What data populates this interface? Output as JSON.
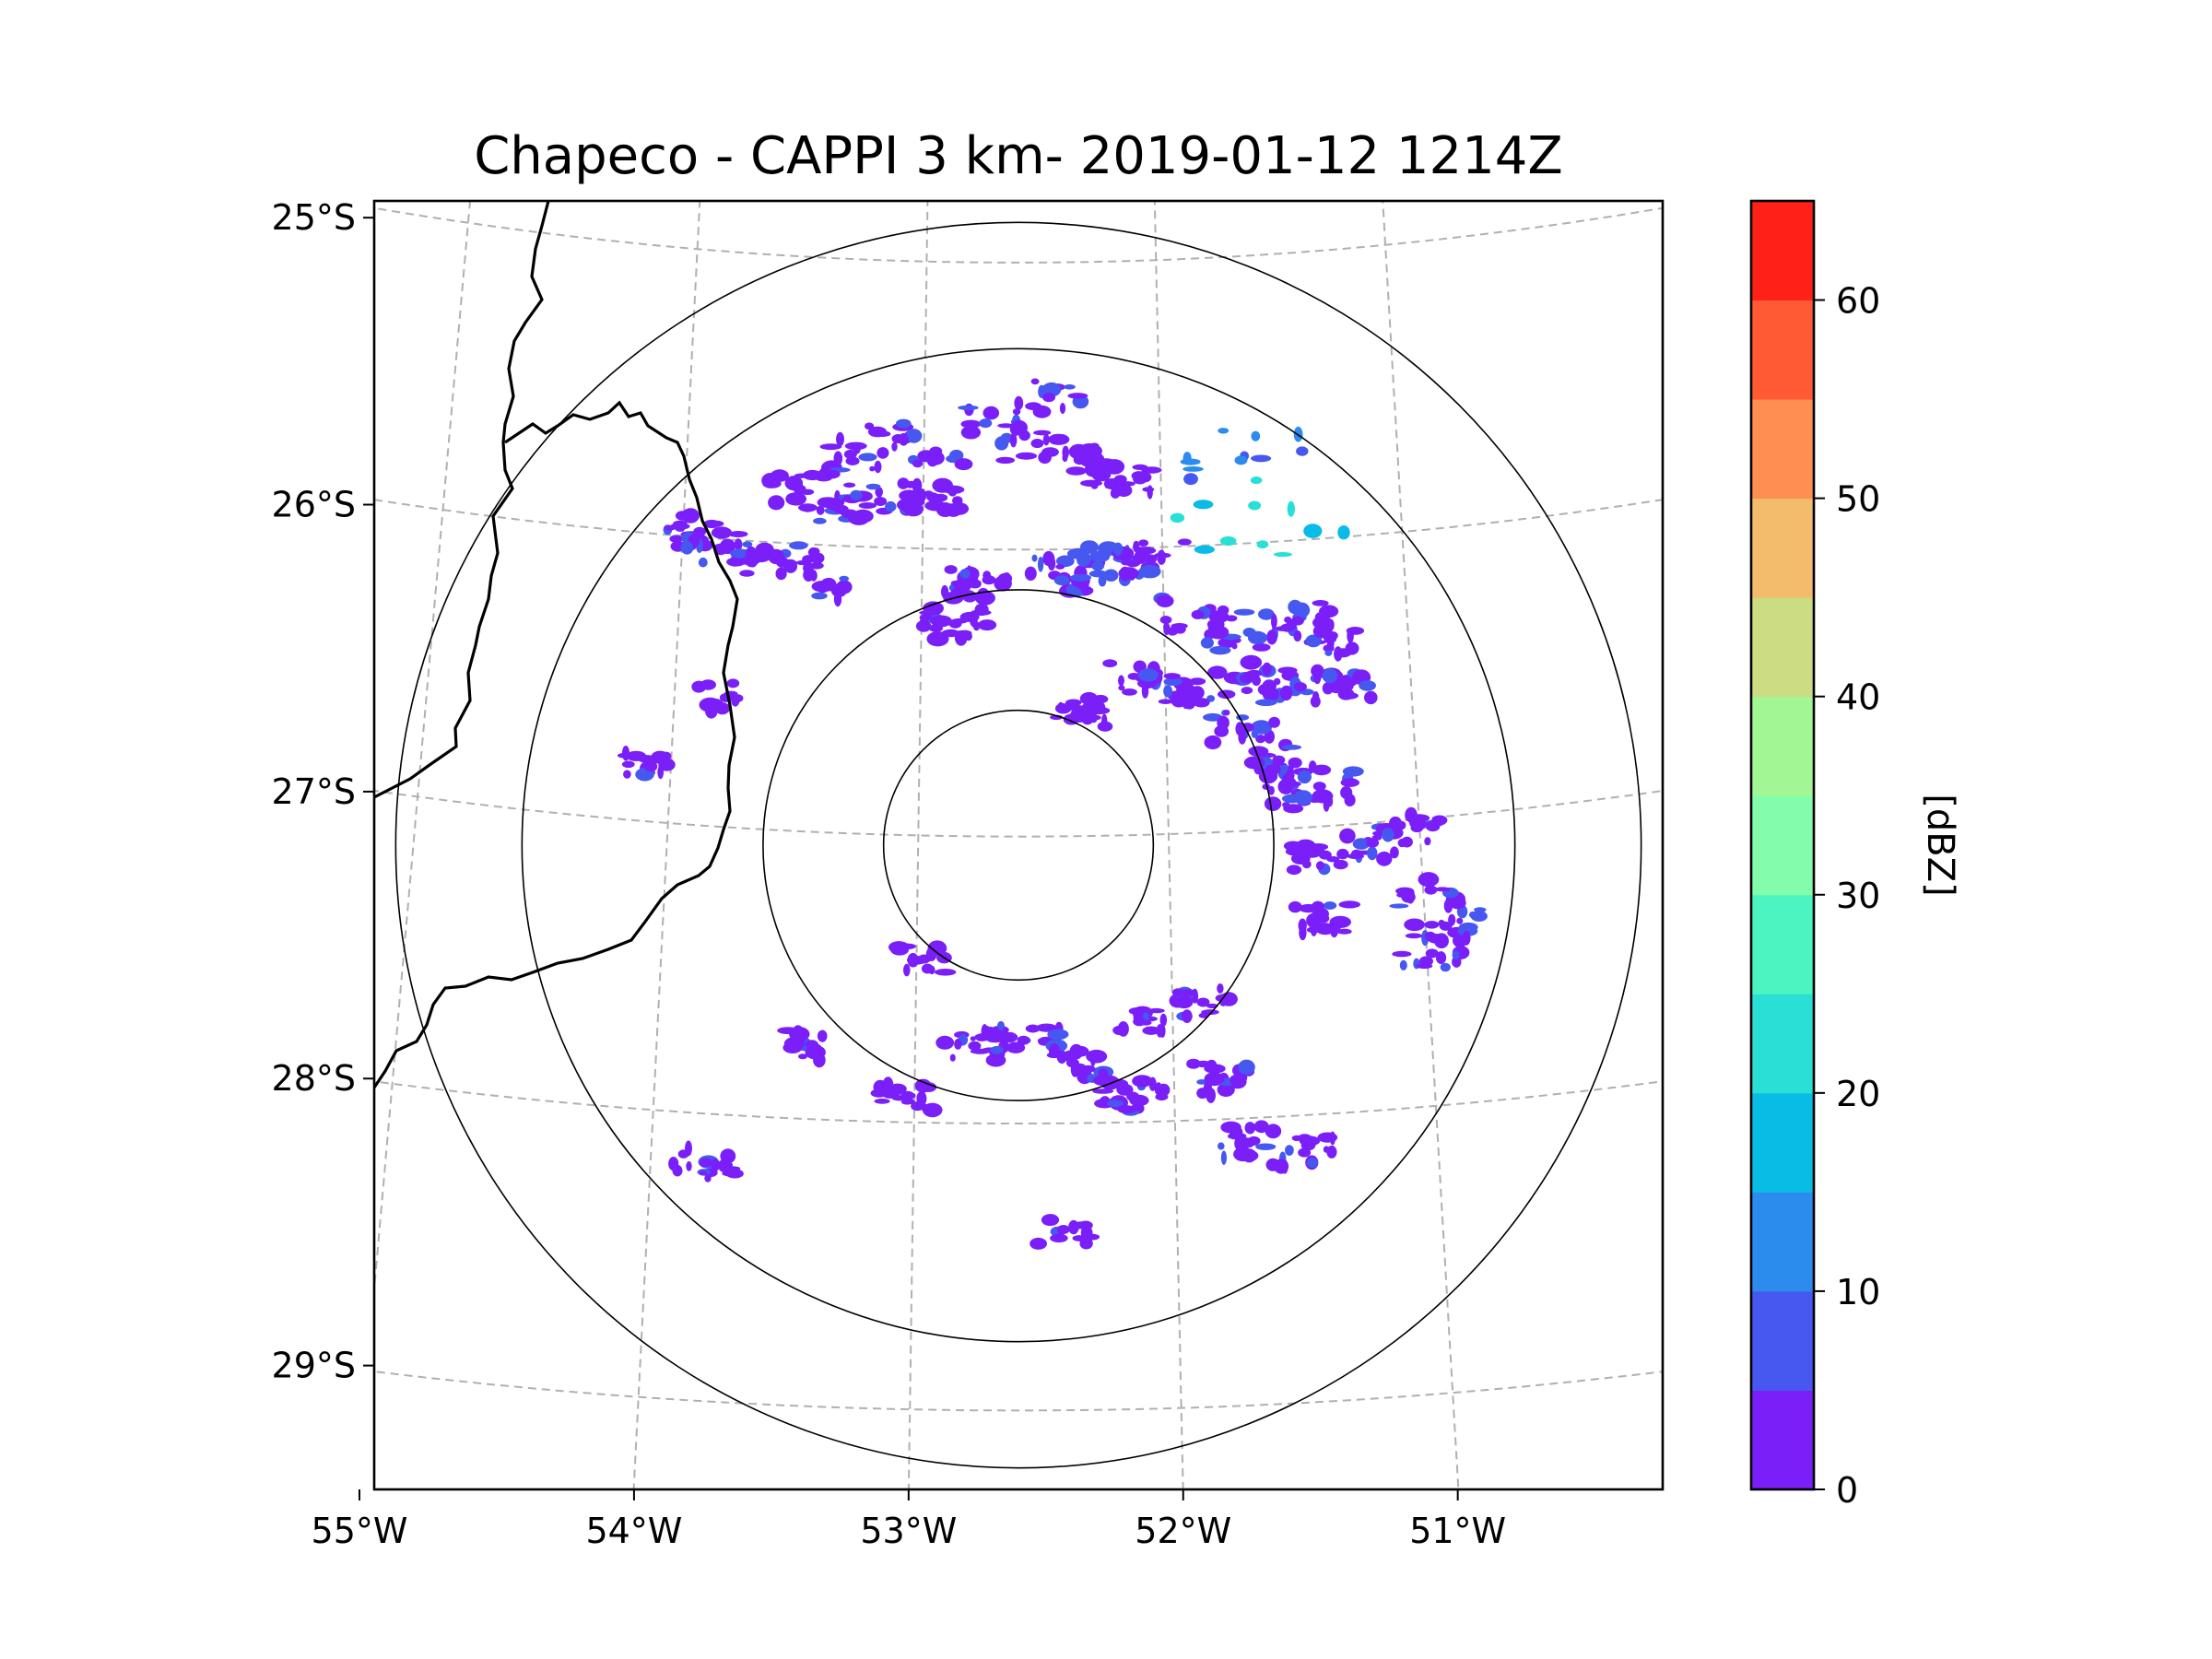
{
  "chart_data": {
    "type": "heatmap",
    "title": "Chapeco - CAPPI 3 km- 2019-01-12 1214Z",
    "xlabel": "",
    "ylabel": "",
    "xlim": [
      -55.17,
      -50.03
    ],
    "ylim": [
      -29.28,
      -24.79
    ],
    "grid": true,
    "x_ticks": [
      {
        "value": -55,
        "label": "55°W"
      },
      {
        "value": -54,
        "label": "54°W"
      },
      {
        "value": -53,
        "label": "53°W"
      },
      {
        "value": -52,
        "label": "52°W"
      },
      {
        "value": -51,
        "label": "51°W"
      }
    ],
    "y_ticks": [
      {
        "value": -25,
        "label": "25°S"
      },
      {
        "value": -26,
        "label": "26°S"
      },
      {
        "value": -27,
        "label": "27°S"
      },
      {
        "value": -28,
        "label": "28°S"
      },
      {
        "value": -29,
        "label": "29°S"
      }
    ],
    "radar_center": {
      "lon": -52.6,
      "lat": -27.03
    },
    "range_rings_deg_lat": [
      0.47,
      0.89,
      1.73,
      2.17
    ],
    "colorbar": {
      "label": "[dBZ]",
      "min": 0,
      "max": 65,
      "ticks": [
        0,
        10,
        20,
        30,
        40,
        50,
        60
      ],
      "levels": [
        0,
        5,
        10,
        15,
        20,
        25,
        30,
        35,
        40,
        45,
        50,
        55,
        60,
        65
      ],
      "colors": [
        "#7a1ff8",
        "#4658f0",
        "#2b8cee",
        "#08bce6",
        "#2ae0d6",
        "#4cf4c2",
        "#83fcac",
        "#a2f794",
        "#cbdc82",
        "#f2bc6c",
        "#fe8f50",
        "#ff5a33",
        "#ff2018"
      ]
    },
    "echoes": [
      {
        "lon": -53.31,
        "lat": -25.68,
        "dbz": 3
      },
      {
        "lon": -53.11,
        "lat": -25.62,
        "dbz": 4
      },
      {
        "lon": -52.95,
        "lat": -25.66,
        "dbz": 3
      },
      {
        "lon": -52.74,
        "lat": -25.56,
        "dbz": 5
      },
      {
        "lon": -52.52,
        "lat": -25.63,
        "dbz": 4
      },
      {
        "lon": -53.52,
        "lat": -25.81,
        "dbz": 3
      },
      {
        "lon": -53.38,
        "lat": -25.86,
        "dbz": 3
      },
      {
        "lon": -53.18,
        "lat": -25.84,
        "dbz": 4
      },
      {
        "lon": -52.96,
        "lat": -25.82,
        "dbz": 2
      },
      {
        "lon": -53.93,
        "lat": -25.98,
        "dbz": 3
      },
      {
        "lon": -53.84,
        "lat": -26.04,
        "dbz": 4
      },
      {
        "lon": -53.58,
        "lat": -26.07,
        "dbz": 4
      },
      {
        "lon": -53.41,
        "lat": -26.15,
        "dbz": 2
      },
      {
        "lon": -52.78,
        "lat": -26.12,
        "dbz": 3
      },
      {
        "lon": -52.45,
        "lat": -26.09,
        "dbz": 4
      },
      {
        "lon": -52.27,
        "lat": -26.06,
        "dbz": 5
      },
      {
        "lon": -52.05,
        "lat": -26.04,
        "dbz": 4
      },
      {
        "lon": -51.86,
        "lat": -26.24,
        "dbz": 4
      },
      {
        "lon": -51.65,
        "lat": -26.31,
        "dbz": 6
      },
      {
        "lon": -51.45,
        "lat": -26.28,
        "dbz": 4
      },
      {
        "lon": -51.32,
        "lat": -26.35,
        "dbz": 3
      },
      {
        "lon": -52.1,
        "lat": -26.45,
        "dbz": 3
      },
      {
        "lon": -51.93,
        "lat": -26.5,
        "dbz": 4
      },
      {
        "lon": -51.67,
        "lat": -26.47,
        "dbz": 4
      },
      {
        "lon": -51.45,
        "lat": -26.51,
        "dbz": 4
      },
      {
        "lon": -51.26,
        "lat": -26.52,
        "dbz": 3
      },
      {
        "lon": -51.67,
        "lat": -26.64,
        "dbz": 4
      },
      {
        "lon": -51.55,
        "lat": -26.76,
        "dbz": 4
      },
      {
        "lon": -51.48,
        "lat": -26.88,
        "dbz": 3
      },
      {
        "lon": -51.39,
        "lat": -26.86,
        "dbz": 4
      },
      {
        "lon": -51.38,
        "lat": -27.1,
        "dbz": 3
      },
      {
        "lon": -51.19,
        "lat": -27.07,
        "dbz": 3
      },
      {
        "lon": -51.01,
        "lat": -27.03,
        "dbz": 3
      },
      {
        "lon": -50.92,
        "lat": -27.38,
        "dbz": 4
      },
      {
        "lon": -50.98,
        "lat": -27.47,
        "dbz": 4
      },
      {
        "lon": -50.97,
        "lat": -27.25,
        "dbz": 3
      },
      {
        "lon": -51.4,
        "lat": -27.32,
        "dbz": 2
      },
      {
        "lon": -52.77,
        "lat": -27.73,
        "dbz": 3
      },
      {
        "lon": -52.58,
        "lat": -27.71,
        "dbz": 4
      },
      {
        "lon": -52.39,
        "lat": -27.79,
        "dbz": 3
      },
      {
        "lon": -52.16,
        "lat": -27.91,
        "dbz": 3
      },
      {
        "lon": -51.83,
        "lat": -27.86,
        "dbz": 3
      },
      {
        "lon": -51.7,
        "lat": -28.08,
        "dbz": 4
      },
      {
        "lon": -51.51,
        "lat": -28.13,
        "dbz": 3
      },
      {
        "lon": -53.4,
        "lat": -27.74,
        "dbz": 3
      },
      {
        "lon": -53.79,
        "lat": -28.17,
        "dbz": 3
      },
      {
        "lon": -52.43,
        "lat": -28.37,
        "dbz": 2
      },
      {
        "lon": -52.36,
        "lat": -26.57,
        "dbz": 2
      },
      {
        "lon": -52.86,
        "lat": -26.26,
        "dbz": 3
      },
      {
        "lon": -53.79,
        "lat": -26.55,
        "dbz": 2
      },
      {
        "lon": -54.08,
        "lat": -26.81,
        "dbz": 2
      },
      {
        "lon": -51.61,
        "lat": -25.87,
        "dbz": 23
      },
      {
        "lon": -51.66,
        "lat": -25.71,
        "dbz": 12
      },
      {
        "lon": -52.17,
        "lat": -25.76,
        "dbz": 3
      },
      {
        "lon": -52.47,
        "lat": -25.47,
        "dbz": 3
      },
      {
        "lon": -52.34,
        "lat": -25.69,
        "dbz": 2
      },
      {
        "lon": -52.97,
        "lat": -27.43,
        "dbz": 2
      },
      {
        "lon": -52.13,
        "lat": -27.65,
        "dbz": 2
      },
      {
        "lon": -53.03,
        "lat": -27.91,
        "dbz": 2
      },
      {
        "lon": -51.88,
        "lat": -27.59,
        "dbz": 2
      }
    ]
  }
}
